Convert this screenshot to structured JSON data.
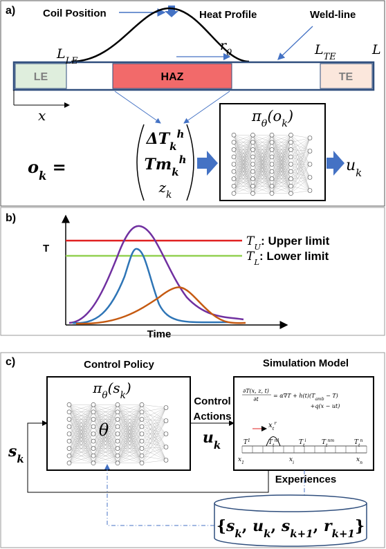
{
  "panel_a": {
    "label": "a)",
    "coil_position": "Coil Position",
    "heat_profile": "Heat Profile",
    "weld_line": "Weld-line",
    "l_le": {
      "symbol": "L",
      "sub": "LE"
    },
    "r0": {
      "symbol": "r",
      "sub": "0"
    },
    "l_te": {
      "symbol": "L",
      "sub": "TE"
    },
    "l": "L",
    "zones": [
      "LE",
      "HAZ",
      "TE"
    ],
    "x_axis": "x",
    "observation": {
      "symbol": "o",
      "sub": "k",
      "equals": " ="
    },
    "entries": [
      {
        "symbol": "ΔT",
        "sub": "k",
        "sup": "h"
      },
      {
        "symbol": "Tm",
        "sub": "k",
        "sup": "h"
      },
      {
        "symbol": "z",
        "sub": "k"
      }
    ],
    "policy": {
      "symbol": "π",
      "sub": "θ",
      "arg": "(o",
      "arg_sub": "k",
      "close": ")"
    },
    "action": {
      "symbol": "u",
      "sub": "k"
    }
  },
  "panel_b": {
    "label": "b)",
    "upper": {
      "symbol": "T",
      "sub": "U",
      "text": ": Upper limit"
    },
    "lower": {
      "symbol": "T",
      "sub": "L",
      "text": ": Lower limit"
    },
    "y_axis": "T",
    "x_axis": "Time"
  },
  "panel_c": {
    "label": "c)",
    "policy_title": "Control Policy",
    "model_title": "Simulation Model",
    "policy": {
      "symbol": "π",
      "sub": "θ",
      "arg": "(s",
      "arg_sub": "k",
      "close": ")"
    },
    "theta": "θ",
    "control_actions": [
      "Control",
      "Actions"
    ],
    "action": {
      "symbol": "u",
      "sub": "k"
    },
    "state": {
      "symbol": "s",
      "sub": "k"
    },
    "equation": [
      "∂T(x, z, t)",
      "∂t",
      "= α∇T + h(t)(T",
      "amb",
      " − T)",
      "+q(x − ut)"
    ],
    "nodes": [
      {
        "symbol": "T",
        "sup": "1"
      },
      {
        "symbol": "T",
        "sub": "t",
        "sup": "n1"
      },
      {
        "symbol": "T",
        "sub": "t",
        "sup": "i"
      },
      {
        "symbol": "T",
        "sub": "t",
        "sup": "nm"
      },
      {
        "symbol": "T",
        "sub": "t",
        "sup": "n"
      }
    ],
    "positions": [
      {
        "symbol": "x",
        "sub": "1"
      },
      {
        "symbol": "x",
        "sub": "i"
      },
      {
        "symbol": "x",
        "sub": "n"
      }
    ],
    "coil": {
      "symbol": "x",
      "sub": "t",
      "sup": "r"
    },
    "experiences": "Experiences",
    "tuple": {
      "open": "{",
      "items": [
        {
          "symbol": "s",
          "sub": "k"
        },
        {
          "symbol": "u",
          "sub": "k"
        },
        {
          "symbol": "s",
          "sub": "k+1"
        },
        {
          "symbol": "r",
          "sub": "k+1"
        }
      ],
      "sep": ", ",
      "close": "}"
    }
  }
}
